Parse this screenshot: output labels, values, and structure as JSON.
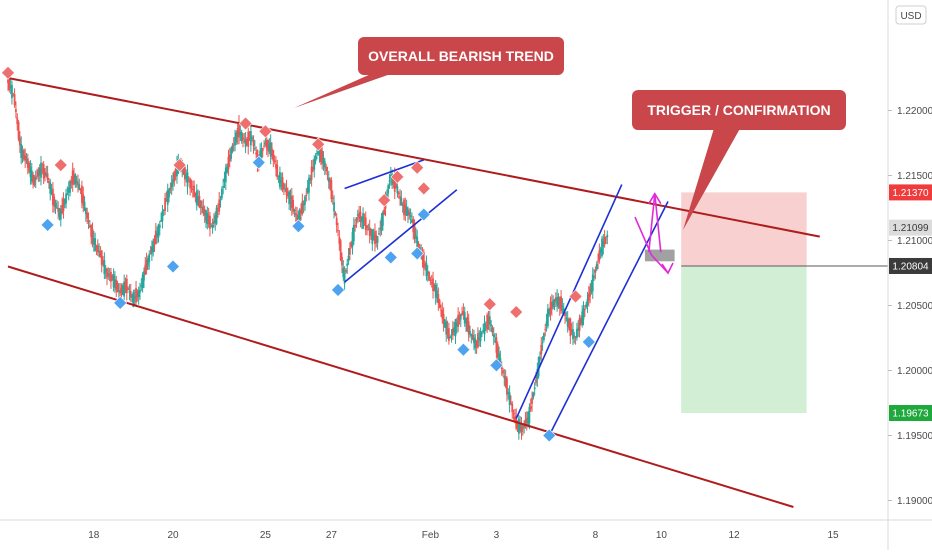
{
  "chart_data": {
    "type": "candlestick",
    "currency_label": "USD",
    "x_ticks": [
      "18",
      "20",
      "25",
      "27",
      "Feb",
      "3",
      "8",
      "10",
      "12",
      "15"
    ],
    "y_ticks": [
      "1.22000",
      "1.21500",
      "1.21000",
      "1.20500",
      "1.20000",
      "1.19500",
      "1.19000"
    ],
    "price_badges": [
      {
        "label": "1.21370",
        "style": "red"
      },
      {
        "label": "1.21099",
        "style": "gray"
      },
      {
        "label": "1.20804",
        "style": "dark"
      },
      {
        "label": "1.19673",
        "style": "green"
      }
    ],
    "ylim": [
      1.1885,
      1.2285
    ],
    "close_path": [
      [
        0,
        1.2225
      ],
      [
        1,
        1.221
      ],
      [
        2,
        1.217
      ],
      [
        3,
        1.216
      ],
      [
        4,
        1.2145
      ],
      [
        5,
        1.2155
      ],
      [
        6,
        1.215
      ],
      [
        7,
        1.213
      ],
      [
        8,
        1.212
      ],
      [
        9,
        1.2135
      ],
      [
        10,
        1.215
      ],
      [
        11,
        1.214
      ],
      [
        12,
        1.212
      ],
      [
        13,
        1.21
      ],
      [
        14,
        1.209
      ],
      [
        15,
        1.2075
      ],
      [
        16,
        1.207
      ],
      [
        17,
        1.206
      ],
      [
        18,
        1.2065
      ],
      [
        19,
        1.2055
      ],
      [
        20,
        1.206
      ],
      [
        21,
        1.208
      ],
      [
        22,
        1.2095
      ],
      [
        23,
        1.211
      ],
      [
        24,
        1.213
      ],
      [
        25,
        1.2145
      ],
      [
        26,
        1.216
      ],
      [
        27,
        1.215
      ],
      [
        28,
        1.214
      ],
      [
        29,
        1.213
      ],
      [
        30,
        1.212
      ],
      [
        31,
        1.211
      ],
      [
        32,
        1.2125
      ],
      [
        33,
        1.215
      ],
      [
        34,
        1.217
      ],
      [
        35,
        1.2185
      ],
      [
        36,
        1.2175
      ],
      [
        37,
        1.218
      ],
      [
        38,
        1.216
      ],
      [
        39,
        1.2175
      ],
      [
        40,
        1.217
      ],
      [
        41,
        1.215
      ],
      [
        42,
        1.214
      ],
      [
        43,
        1.213
      ],
      [
        44,
        1.2115
      ],
      [
        45,
        1.213
      ],
      [
        46,
        1.215
      ],
      [
        47,
        1.217
      ],
      [
        48,
        1.216
      ],
      [
        49,
        1.214
      ],
      [
        50,
        1.211
      ],
      [
        51,
        1.207
      ],
      [
        52,
        1.2095
      ],
      [
        53,
        1.212
      ],
      [
        54,
        1.2115
      ],
      [
        55,
        1.2105
      ],
      [
        56,
        1.21
      ],
      [
        57,
        1.212
      ],
      [
        58,
        1.215
      ],
      [
        59,
        1.214
      ],
      [
        60,
        1.2125
      ],
      [
        61,
        1.212
      ],
      [
        62,
        1.21
      ],
      [
        63,
        1.2085
      ],
      [
        64,
        1.207
      ],
      [
        65,
        1.206
      ],
      [
        66,
        1.204
      ],
      [
        67,
        1.2025
      ],
      [
        68,
        1.2035
      ],
      [
        69,
        1.2045
      ],
      [
        70,
        1.203
      ],
      [
        71,
        1.202
      ],
      [
        72,
        1.203
      ],
      [
        73,
        1.204
      ],
      [
        74,
        1.202
      ],
      [
        75,
        1.2
      ],
      [
        76,
        1.198
      ],
      [
        77,
        1.196
      ],
      [
        78,
        1.1955
      ],
      [
        79,
        1.1965
      ],
      [
        80,
        1.199
      ],
      [
        81,
        1.202
      ],
      [
        82,
        1.2045
      ],
      [
        83,
        1.2055
      ],
      [
        84,
        1.205
      ],
      [
        85,
        1.2035
      ],
      [
        86,
        1.2025
      ],
      [
        87,
        1.204
      ],
      [
        88,
        1.2055
      ],
      [
        89,
        1.2075
      ],
      [
        90,
        1.2095
      ],
      [
        91,
        1.2105
      ]
    ],
    "tops": [
      [
        0,
        1.2229
      ],
      [
        8,
        1.2158
      ],
      [
        26,
        1.2158
      ],
      [
        36,
        1.219
      ],
      [
        39,
        1.2184
      ],
      [
        47,
        1.2174
      ],
      [
        57,
        1.2131
      ],
      [
        59,
        1.2149
      ],
      [
        62,
        1.2156
      ],
      [
        63,
        1.214
      ],
      [
        73,
        1.2051
      ],
      [
        77,
        1.2045
      ],
      [
        86,
        1.2057
      ]
    ],
    "bottoms": [
      [
        6,
        1.2112
      ],
      [
        25,
        1.208
      ],
      [
        17,
        1.2052
      ],
      [
        38,
        1.216
      ],
      [
        44,
        1.2111
      ],
      [
        50,
        1.2062
      ],
      [
        58,
        1.2087
      ],
      [
        62,
        1.209
      ],
      [
        63,
        1.212
      ],
      [
        69,
        1.2016
      ],
      [
        74,
        1.2004
      ],
      [
        82,
        1.195
      ],
      [
        88,
        1.2022
      ]
    ],
    "channel_upper": [
      [
        0,
        1.2225
      ],
      [
        123,
        1.2103
      ]
    ],
    "channel_lower": [
      [
        0,
        1.208
      ],
      [
        119,
        1.1895
      ]
    ],
    "wedge_lines": [
      [
        [
          51,
          1.2068
        ],
        [
          68,
          1.2139
        ]
      ],
      [
        [
          51,
          1.214
        ],
        [
          63,
          1.2162
        ]
      ],
      [
        [
          77,
          1.1963
        ],
        [
          93,
          1.2143
        ]
      ],
      [
        [
          82,
          1.195
        ],
        [
          100,
          1.213
        ]
      ]
    ],
    "arrows": [
      {
        "type": "up",
        "from": [
          98,
          1.2091
        ],
        "to": [
          98,
          1.2136
        ]
      },
      {
        "type": "down",
        "from": [
          95,
          1.2118
        ],
        "to": [
          100,
          1.2075
        ]
      }
    ],
    "entry_box": {
      "x0": 96.5,
      "x1": 101,
      "y0": 1.2084,
      "y1": 1.2093
    },
    "position_long_short": {
      "stop": 1.2137,
      "entry": 1.20804,
      "target": 1.19673,
      "x0": 102,
      "x1": 121
    },
    "annotations": [
      {
        "text": "OVERALL BEARISH TREND",
        "anchor": [
          43,
          1.217
        ]
      },
      {
        "text": "TRIGGER / CONFIRMATION",
        "anchor": [
          100,
          1.2106
        ]
      }
    ]
  }
}
